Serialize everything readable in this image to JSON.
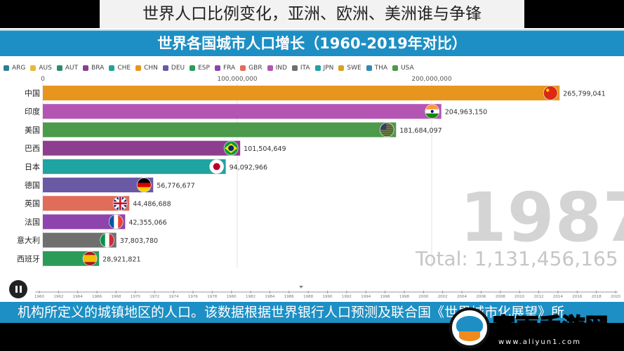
{
  "video_title": "世界人口比例变化，亚洲、欧洲、美洲谁与争锋",
  "chart_header": "世界各国城市人口增长（1960-2019年对比）",
  "subtitle_text": "机构所定义的城镇地区的人口。该数据根据世界银行人口预测及联合国《世界城市化展望》所",
  "watermark": {
    "title": "富雨手游网",
    "url": "www.aliyun1.com"
  },
  "controls": {
    "play_pause_icon": "pause-icon"
  },
  "legend": [
    {
      "code": "ARG",
      "color": "#2d7d9a"
    },
    {
      "code": "AUS",
      "color": "#e8b83a"
    },
    {
      "code": "AUT",
      "color": "#2e8b6e"
    },
    {
      "code": "BRA",
      "color": "#8e3e8e"
    },
    {
      "code": "CHE",
      "color": "#1fa39a"
    },
    {
      "code": "CHN",
      "color": "#e8951f"
    },
    {
      "code": "DEU",
      "color": "#6a5aa5"
    },
    {
      "code": "ESP",
      "color": "#2b9b5a"
    },
    {
      "code": "FRA",
      "color": "#8e44ad"
    },
    {
      "code": "GBR",
      "color": "#e06c5a"
    },
    {
      "code": "IND",
      "color": "#b455b4"
    },
    {
      "code": "ITA",
      "color": "#6f6f6f"
    },
    {
      "code": "JPN",
      "color": "#1fa3a3"
    },
    {
      "code": "SWE",
      "color": "#d9a21f"
    },
    {
      "code": "THA",
      "color": "#2d8ab8"
    },
    {
      "code": "USA",
      "color": "#4c9a4c"
    }
  ],
  "chart_data": {
    "type": "bar",
    "orientation": "horizontal",
    "year": "1987",
    "total_text": "Total: 1,131,456,165",
    "x_ticks": [
      0,
      100000000,
      200000000
    ],
    "x_tick_labels": [
      "0",
      "100,000,000",
      "200,000,000"
    ],
    "xlim": [
      0,
      300000000
    ],
    "timeline_labels": [
      "1960",
      "1962",
      "1964",
      "1966",
      "1968",
      "1970",
      "1972",
      "1974",
      "1976",
      "1978",
      "1980",
      "1982",
      "1984",
      "1986",
      "1988",
      "1990",
      "1992",
      "1994",
      "1996",
      "1998",
      "2000",
      "2002",
      "2004",
      "2006",
      "2008",
      "2010",
      "2012",
      "2014",
      "2016",
      "2018",
      "2020"
    ],
    "categories": [
      "中国",
      "印度",
      "美国",
      "巴西",
      "日本",
      "德国",
      "英国",
      "法国",
      "意大利",
      "西班牙"
    ],
    "codes": [
      "CHN",
      "IND",
      "USA",
      "BRA",
      "JPN",
      "DEU",
      "GBR",
      "FRA",
      "ITA",
      "ESP"
    ],
    "values": [
      265799041,
      204963150,
      181684097,
      101504649,
      94092966,
      56776677,
      44486688,
      42355066,
      37803780,
      28921821
    ],
    "value_labels": [
      "265,799,041",
      "204,963,150",
      "181,684,097",
      "101,504,649",
      "94,092,966",
      "56,776,677",
      "44,486,688",
      "42,355,066",
      "37,803,780",
      "28,921,821"
    ],
    "colors": [
      "#e8951f",
      "#b455b4",
      "#4c9a4c",
      "#8e3e8e",
      "#1fa3a3",
      "#6a5aa5",
      "#e06c5a",
      "#8e44ad",
      "#6f6f6f",
      "#2b9b5a"
    ],
    "flag_icons": [
      "china-flag-icon",
      "india-flag-icon",
      "usa-flag-icon",
      "brazil-flag-icon",
      "japan-flag-icon",
      "germany-flag-icon",
      "uk-flag-icon",
      "france-flag-icon",
      "italy-flag-icon",
      "spain-flag-icon"
    ]
  }
}
